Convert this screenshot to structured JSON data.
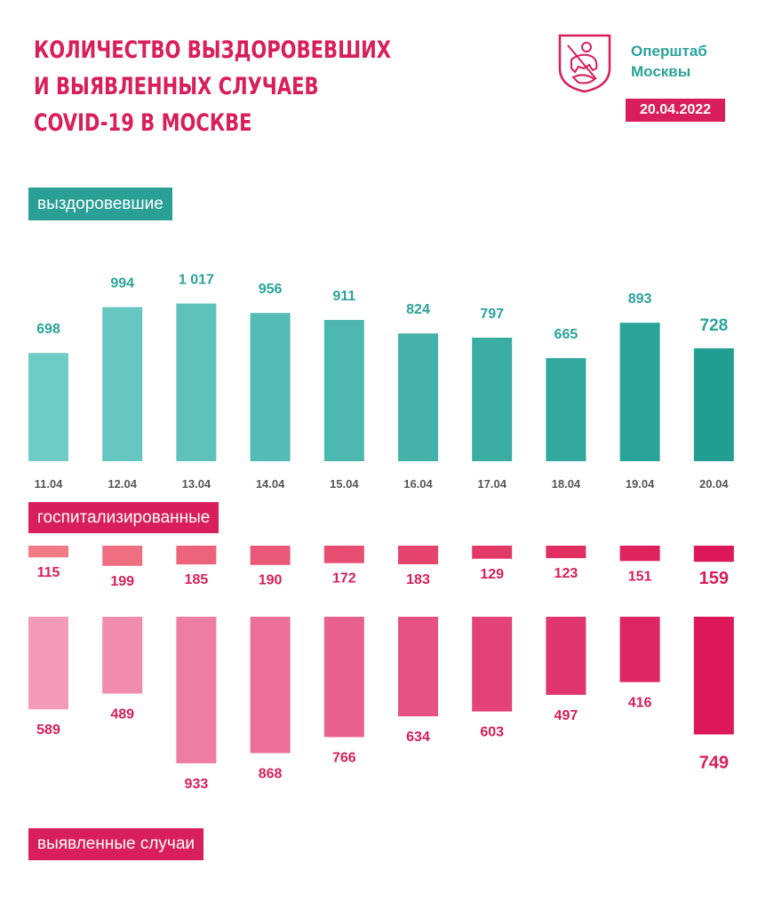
{
  "header": {
    "title_lines": [
      "КОЛИЧЕСТВО ВЫЗДОРОВЕВШИХ",
      "И ВЫЯВЛЕННЫХ СЛУЧАЕВ",
      "COVID-19 В МОСКВЕ"
    ],
    "org_lines": [
      "Оперштаб",
      "Москвы"
    ],
    "date": "20.04.2022",
    "logo_icon": "moscow-coat-of-arms-icon"
  },
  "labels": {
    "recovered": "выздоровевшие",
    "hospitalized": "госпитализированные",
    "detected": "выявленные случаи"
  },
  "colors": {
    "accent_pink": "#d81e5b",
    "accent_teal": "#2aa39a",
    "label_teal": "#2a9f96"
  },
  "chart_data": [
    {
      "type": "bar",
      "categories": [
        "11.04",
        "12.04",
        "13.04",
        "14.04",
        "15.04",
        "16.04",
        "17.04",
        "18.04",
        "19.04",
        "20.04"
      ],
      "series": [
        {
          "name": "выздоровевшие",
          "values": [
            698,
            994,
            1017,
            956,
            911,
            824,
            797,
            665,
            893,
            728
          ]
        }
      ],
      "value_labels": [
        "698",
        "994",
        "1 017",
        "956",
        "911",
        "824",
        "797",
        "665",
        "893",
        "728"
      ],
      "grid": false
    },
    {
      "type": "bar",
      "categories": [
        "11.04",
        "12.04",
        "13.04",
        "14.04",
        "15.04",
        "16.04",
        "17.04",
        "18.04",
        "19.04",
        "20.04"
      ],
      "series": [
        {
          "name": "госпитализированные",
          "values": [
            115,
            199,
            185,
            190,
            172,
            183,
            129,
            123,
            151,
            159
          ]
        }
      ],
      "grid": false
    },
    {
      "type": "bar",
      "categories": [
        "11.04",
        "12.04",
        "13.04",
        "14.04",
        "15.04",
        "16.04",
        "17.04",
        "18.04",
        "19.04",
        "20.04"
      ],
      "series": [
        {
          "name": "выявленные случаи",
          "values": [
            589,
            489,
            933,
            868,
            766,
            634,
            603,
            497,
            416,
            749
          ]
        }
      ],
      "grid": false
    }
  ]
}
